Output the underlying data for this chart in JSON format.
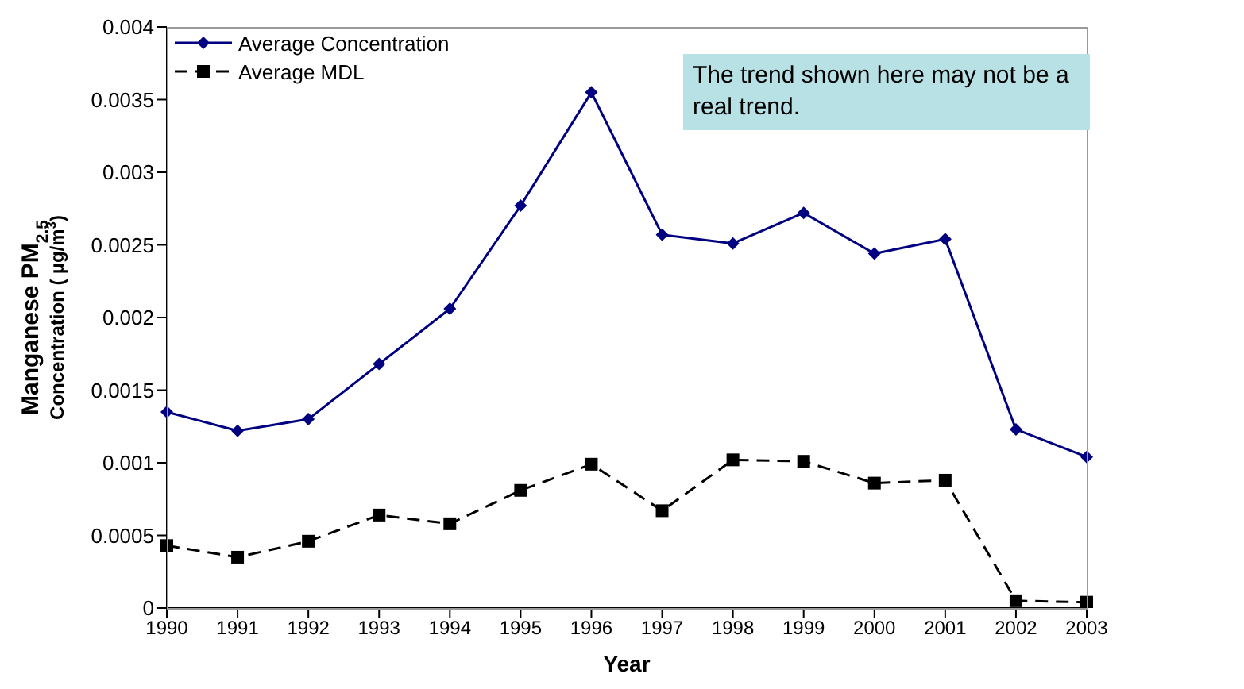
{
  "chart_data": {
    "type": "line",
    "xlabel": "Year",
    "ylabel": "Manganese PM$_{2.5}$\nConcentration ( µg/m$^{3}$)",
    "categories": [
      "1990",
      "1991",
      "1992",
      "1993",
      "1994",
      "1995",
      "1996",
      "1997",
      "1998",
      "1999",
      "2000",
      "2001",
      "2002",
      "2003"
    ],
    "series": [
      {
        "name": "Average Concentration",
        "color": "#000080",
        "marker": "diamond",
        "line_style": "solid",
        "values": [
          0.00135,
          0.00122,
          0.0013,
          0.00168,
          0.00206,
          0.00277,
          0.00355,
          0.00257,
          0.00251,
          0.00272,
          0.00244,
          0.00254,
          0.00123,
          0.00104
        ]
      },
      {
        "name": "Average MDL",
        "color": "#000000",
        "marker": "square",
        "line_style": "dashed",
        "values": [
          0.00043,
          0.00035,
          0.00046,
          0.00064,
          0.00058,
          0.00081,
          0.00099,
          0.00067,
          0.00102,
          0.00101,
          0.00086,
          0.00088,
          5e-05,
          4e-05
        ]
      }
    ],
    "ylim": [
      0,
      0.004
    ],
    "yticks": [
      0,
      0.0005,
      0.001,
      0.0015,
      0.002,
      0.0025,
      0.003,
      0.0035,
      0.004
    ],
    "grid": false,
    "legend": "top left",
    "annotations": [
      "The trend shown here may not be a real trend."
    ]
  }
}
